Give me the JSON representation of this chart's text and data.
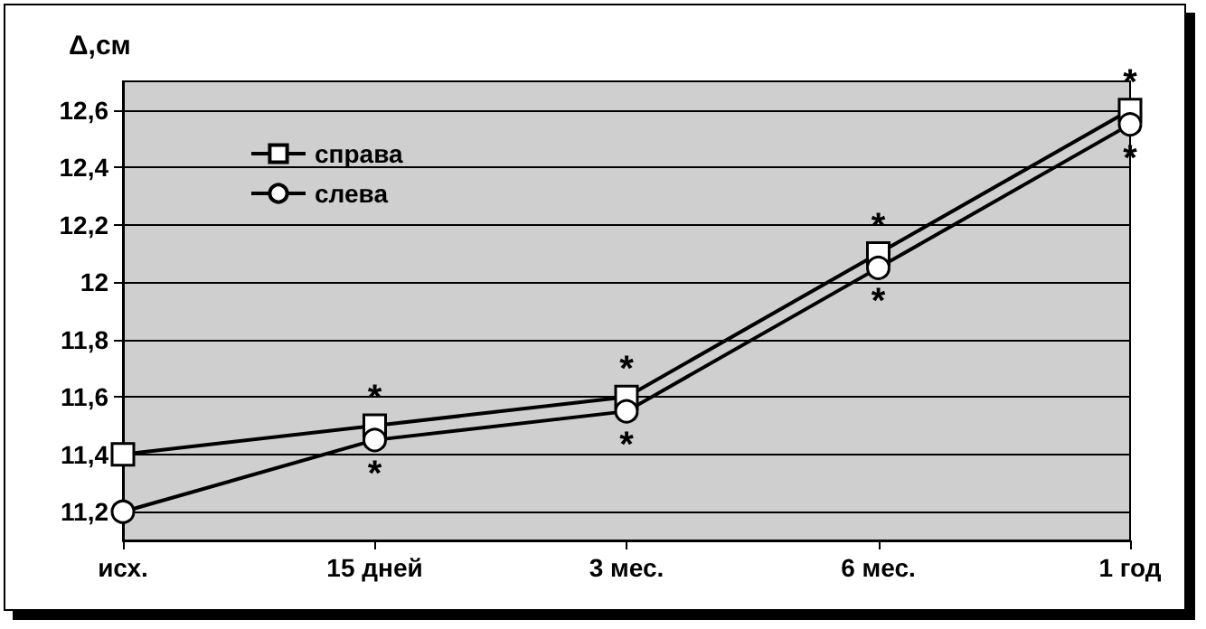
{
  "chart_data": {
    "type": "line",
    "ylabel": "Δ,см",
    "categories": [
      "исх.",
      "15 дней",
      "3 мес.",
      "6 мес.",
      "1 год"
    ],
    "series": [
      {
        "name": "справа",
        "color": "#000000",
        "marker": "square",
        "values": [
          11.4,
          11.5,
          11.6,
          12.1,
          12.6
        ]
      },
      {
        "name": "слева",
        "color": "#000000",
        "marker": "circle",
        "values": [
          11.2,
          11.45,
          11.55,
          12.05,
          12.55
        ]
      }
    ],
    "ylim": [
      11.1,
      12.7
    ],
    "yticks": [
      {
        "value": 11.2,
        "label": "11,2"
      },
      {
        "value": 11.4,
        "label": "11,4"
      },
      {
        "value": 11.6,
        "label": "11,6"
      },
      {
        "value": 11.8,
        "label": "11,8"
      },
      12,
      {
        "value": 12.2,
        "label": "12,2"
      },
      {
        "value": 12.4,
        "label": "12,4"
      },
      {
        "value": 12.6,
        "label": "12,6"
      }
    ],
    "grid": "y",
    "legend": "top left",
    "annotations": [
      {
        "text": "*",
        "x": "15 дней",
        "y": 11.5
      },
      {
        "text": "*",
        "x": "15 дней",
        "y": 11.45
      },
      {
        "text": "*",
        "x": "3 мес.",
        "y": 11.6
      },
      {
        "text": "*",
        "x": "3 мес.",
        "y": 11.55
      },
      {
        "text": "*",
        "x": "6 мес.",
        "y": 12.1
      },
      {
        "text": "*",
        "x": "6 мес.",
        "y": 12.05
      },
      {
        "text": "*",
        "x": "1 год",
        "y": 12.6
      },
      {
        "text": "*",
        "x": "1 год",
        "y": 12.55
      }
    ]
  }
}
